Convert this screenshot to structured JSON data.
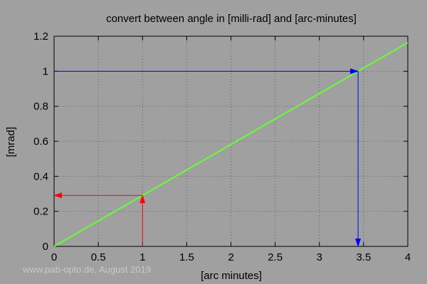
{
  "chart_data": {
    "type": "line",
    "title": "convert between angle in [milli-rad] and [arc-minutes]",
    "xlabel": "[arc minutes]",
    "ylabel": "[mrad]",
    "xlim": [
      0,
      4
    ],
    "ylim": [
      0,
      1.2
    ],
    "x_ticks": [
      "0",
      "0.5",
      "1",
      "1.5",
      "2",
      "2.5",
      "3",
      "3.5",
      "4"
    ],
    "y_ticks": [
      "0",
      "0.2",
      "0.4",
      "0.6",
      "0.8",
      "1",
      "1.2"
    ],
    "grid": true,
    "series": [
      {
        "x": [
          0,
          4
        ],
        "y": [
          0,
          1.1636
        ],
        "color": "#66ff33"
      }
    ],
    "annotations": [
      {
        "type": "arrow-pair",
        "color": "#ff0000",
        "x": 1,
        "y": 0.2909,
        "arrows": [
          "up",
          "left"
        ]
      },
      {
        "type": "arrow-pair",
        "color": "#0000ff",
        "x": 3.4377,
        "y": 1,
        "arrows": [
          "right",
          "down"
        ]
      }
    ]
  },
  "watermark": "www.pab-opto.de, August 2019"
}
